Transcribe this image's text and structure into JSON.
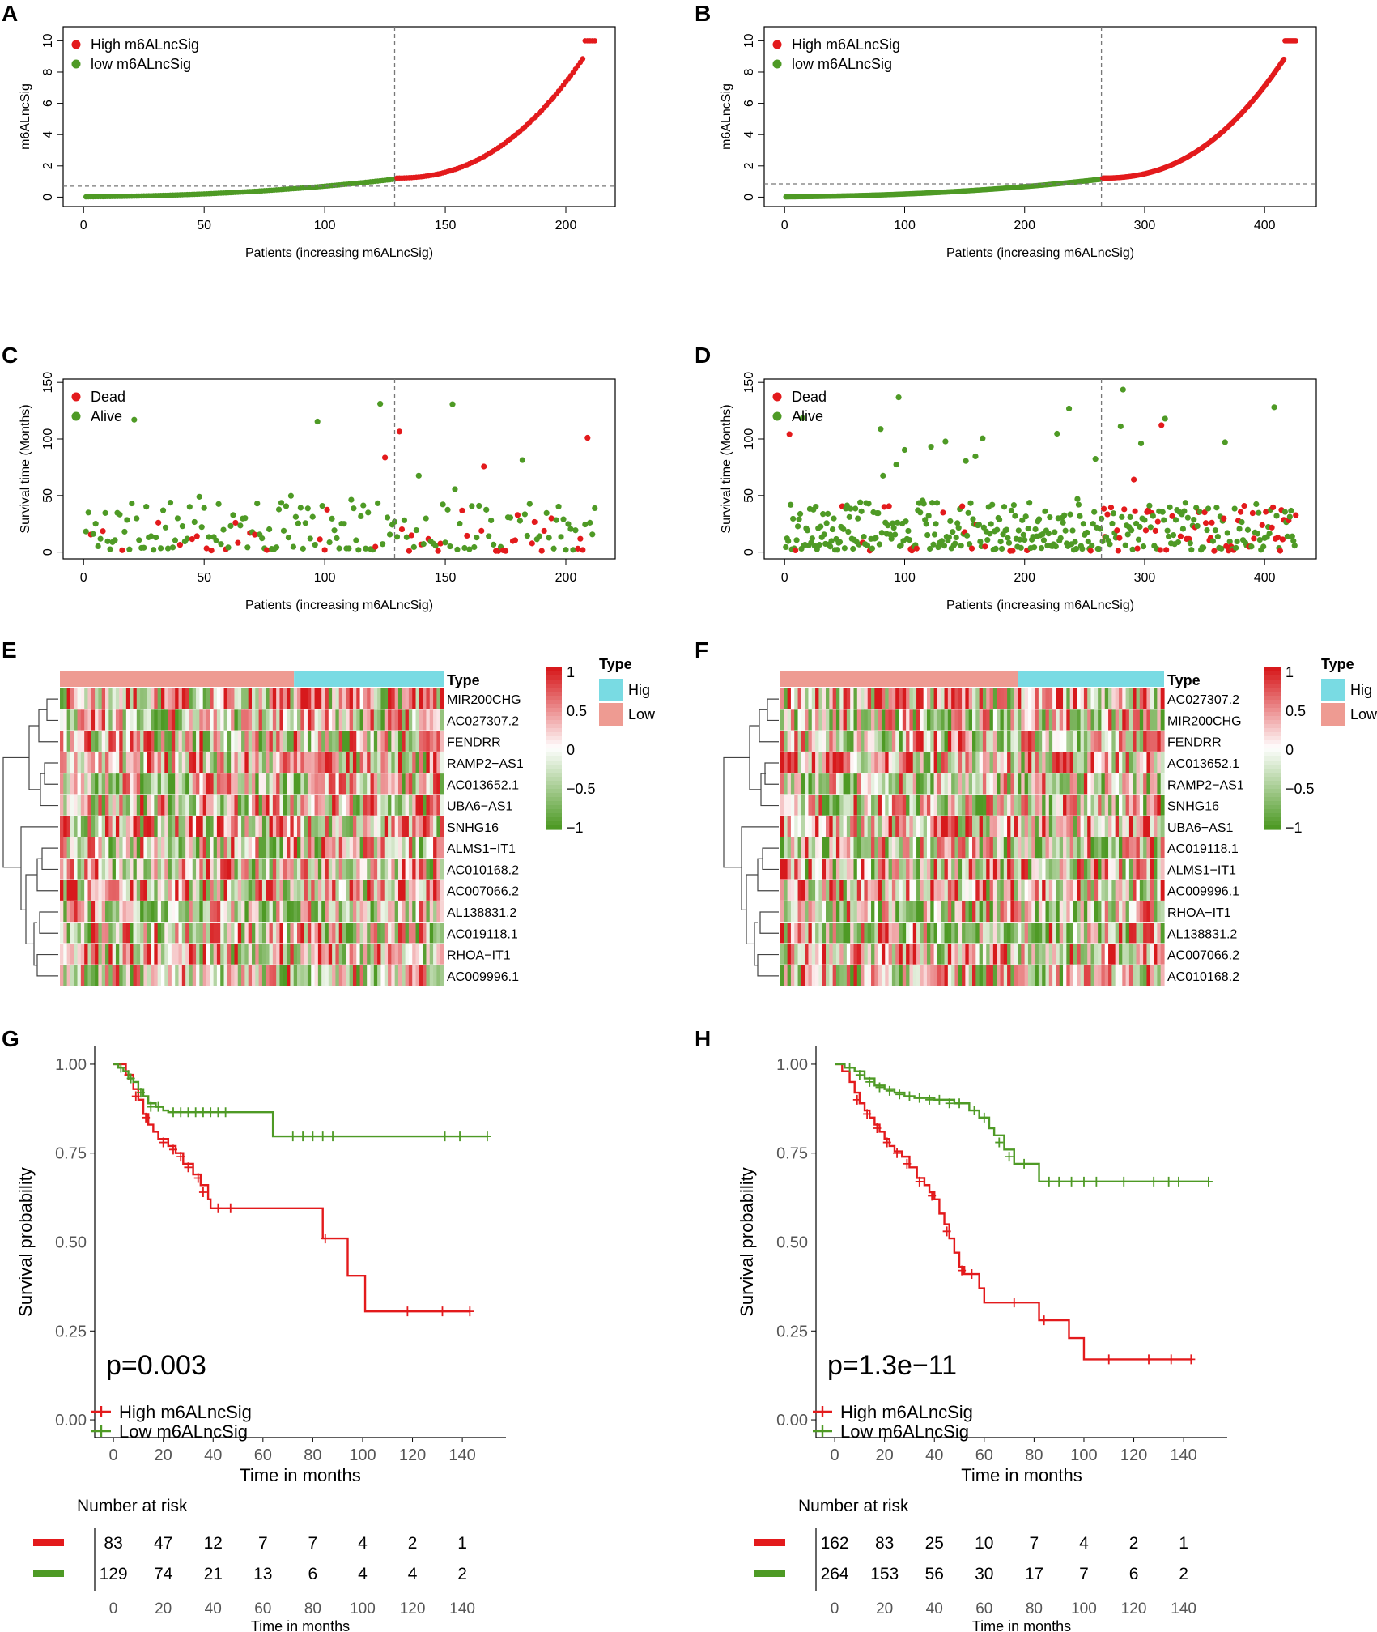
{
  "colors": {
    "high": "#E31A1C",
    "low": "#4E9A25",
    "type_high": "#79DBE3",
    "type_low": "#EE9B92",
    "heat_pos": "#D7191C",
    "heat_neg": "#4E9A25",
    "dash": "#777777"
  },
  "chart_data": [
    {
      "id": "A",
      "type": "scatter",
      "letter": "A",
      "xlabel": "Patients (increasing m6ALncSig)",
      "ylabel": "m6ALncSig",
      "xlim": [
        0,
        212
      ],
      "ylim": [
        0,
        10
      ],
      "xticks": [
        0,
        50,
        100,
        150,
        200
      ],
      "yticks": [
        0,
        2,
        4,
        6,
        8,
        10
      ],
      "n_total": 212,
      "n_low": 129,
      "cutoff_x": 129,
      "cutoff_y": 0.7,
      "legend": [
        "High m6ALncSig",
        "low m6ALncSig"
      ]
    },
    {
      "id": "B",
      "type": "scatter",
      "letter": "B",
      "xlabel": "Patients (increasing m6ALncSig)",
      "ylabel": "m6ALncSig",
      "xlim": [
        0,
        426
      ],
      "ylim": [
        0,
        10
      ],
      "xticks": [
        0,
        100,
        200,
        300,
        400
      ],
      "yticks": [
        0,
        2,
        4,
        6,
        8,
        10
      ],
      "n_total": 426,
      "n_low": 264,
      "cutoff_x": 264,
      "cutoff_y": 0.85,
      "legend": [
        "High m6ALncSig",
        "low m6ALncSig"
      ]
    },
    {
      "id": "C",
      "type": "scatter",
      "letter": "C",
      "xlabel": "Patients (increasing m6ALncSig)",
      "ylabel": "Survival time (Months)",
      "xlim": [
        0,
        212
      ],
      "ylim": [
        0,
        150
      ],
      "xticks": [
        0,
        50,
        100,
        150,
        200
      ],
      "yticks": [
        0,
        50,
        100,
        150
      ],
      "n_total": 212,
      "cutoff_x": 129,
      "legend": [
        "Dead",
        "Alive"
      ]
    },
    {
      "id": "D",
      "type": "scatter",
      "letter": "D",
      "xlabel": "Patients (increasing m6ALncSig)",
      "ylabel": "Survival time (Months)",
      "xlim": [
        0,
        426
      ],
      "ylim": [
        0,
        150
      ],
      "xticks": [
        0,
        100,
        200,
        300,
        400
      ],
      "yticks": [
        0,
        50,
        100,
        150
      ],
      "n_total": 426,
      "cutoff_x": 264,
      "legend": [
        "Dead",
        "Alive"
      ]
    },
    {
      "id": "E",
      "type": "heatmap",
      "letter": "E",
      "genes": [
        "MIR200CHG",
        "AC027307.2",
        "FENDRR",
        "RAMP2−AS1",
        "AC013652.1",
        "UBA6−AS1",
        "SNHG16",
        "ALMS1−IT1",
        "AC010168.2",
        "AC007066.2",
        "AL138831.2",
        "AC019118.1",
        "RHOA−IT1",
        "AC009996.1"
      ],
      "type_title": "Type",
      "legend_title": "Type",
      "legend_items": [
        "Hig",
        "Low"
      ],
      "colorbar_ticks": [
        "1",
        "0.5",
        "0",
        "−0.5",
        "−1"
      ],
      "n_samples": 212,
      "split_fraction": 0.61
    },
    {
      "id": "F",
      "type": "heatmap",
      "letter": "F",
      "genes": [
        "AC027307.2",
        "MIR200CHG",
        "FENDRR",
        "AC013652.1",
        "RAMP2−AS1",
        "SNHG16",
        "UBA6−AS1",
        "AC019118.1",
        "ALMS1−IT1",
        "AC009996.1",
        "RHOA−IT1",
        "AL138831.2",
        "AC007066.2",
        "AC010168.2"
      ],
      "type_title": "Type",
      "legend_title": "Type",
      "legend_items": [
        "Hig",
        "Low"
      ],
      "colorbar_ticks": [
        "1",
        "0.5",
        "0",
        "−0.5",
        "−1"
      ],
      "n_samples": 426,
      "split_fraction": 0.62
    },
    {
      "id": "G",
      "type": "line",
      "letter": "G",
      "xlabel": "Time in months",
      "ylabel": "Survival probability",
      "xlim": [
        0,
        150
      ],
      "ylim": [
        0,
        1
      ],
      "xticks": [
        0,
        20,
        40,
        60,
        80,
        100,
        120,
        140
      ],
      "yticks": [
        "0.00",
        "0.25",
        "0.50",
        "0.75",
        "1.00"
      ],
      "pvalue": "p=0.003",
      "series": [
        {
          "name": "High m6ALncSig",
          "steps": [
            [
              0,
              1.0
            ],
            [
              5,
              0.97
            ],
            [
              8,
              0.93
            ],
            [
              10,
              0.9
            ],
            [
              12,
              0.86
            ],
            [
              14,
              0.83
            ],
            [
              16,
              0.81
            ],
            [
              18,
              0.79
            ],
            [
              22,
              0.77
            ],
            [
              25,
              0.75
            ],
            [
              28,
              0.72
            ],
            [
              32,
              0.69
            ],
            [
              35,
              0.66
            ],
            [
              38,
              0.62
            ],
            [
              39,
              0.595
            ],
            [
              84,
              0.51
            ],
            [
              94,
              0.405
            ],
            [
              101,
              0.305
            ],
            [
              143,
              0.305
            ]
          ],
          "censors": [
            [
              6,
              0.97
            ],
            [
              9,
              0.91
            ],
            [
              13,
              0.85
            ],
            [
              20,
              0.78
            ],
            [
              24,
              0.76
            ],
            [
              27,
              0.74
            ],
            [
              30,
              0.71
            ],
            [
              34,
              0.68
            ],
            [
              36,
              0.64
            ],
            [
              42,
              0.595
            ],
            [
              47,
              0.595
            ],
            [
              85,
              0.51
            ],
            [
              118,
              0.305
            ],
            [
              132,
              0.305
            ],
            [
              143,
              0.305
            ]
          ]
        },
        {
          "name": "Low m6ALncSig",
          "steps": [
            [
              0,
              1.0
            ],
            [
              2,
              0.99
            ],
            [
              4,
              0.98
            ],
            [
              6,
              0.96
            ],
            [
              8,
              0.95
            ],
            [
              10,
              0.93
            ],
            [
              12,
              0.91
            ],
            [
              14,
              0.89
            ],
            [
              17,
              0.88
            ],
            [
              20,
              0.87
            ],
            [
              22,
              0.865
            ],
            [
              64,
              0.797
            ],
            [
              150,
              0.797
            ]
          ],
          "censors": [
            [
              3,
              0.99
            ],
            [
              7,
              0.96
            ],
            [
              11,
              0.92
            ],
            [
              15,
              0.88
            ],
            [
              18,
              0.88
            ],
            [
              24,
              0.865
            ],
            [
              27,
              0.865
            ],
            [
              30,
              0.865
            ],
            [
              33,
              0.865
            ],
            [
              36,
              0.865
            ],
            [
              39,
              0.865
            ],
            [
              42,
              0.865
            ],
            [
              45,
              0.865
            ],
            [
              72,
              0.797
            ],
            [
              76,
              0.797
            ],
            [
              80,
              0.797
            ],
            [
              84,
              0.797
            ],
            [
              88,
              0.797
            ],
            [
              133,
              0.797
            ],
            [
              139,
              0.797
            ],
            [
              150,
              0.797
            ]
          ]
        }
      ],
      "legend": [
        "High m6ALncSig",
        "Low m6ALncSig"
      ],
      "risk_title": "Number at risk",
      "risk_counts": [
        [
          83,
          47,
          12,
          7,
          7,
          4,
          2,
          1
        ],
        [
          129,
          74,
          21,
          13,
          6,
          4,
          4,
          2
        ]
      ],
      "risk_xlabel": "Time in months"
    },
    {
      "id": "H",
      "type": "line",
      "letter": "H",
      "xlabel": "Time in months",
      "ylabel": "Survival probability",
      "xlim": [
        0,
        150
      ],
      "ylim": [
        0,
        1
      ],
      "xticks": [
        0,
        20,
        40,
        60,
        80,
        100,
        120,
        140
      ],
      "yticks": [
        "0.00",
        "0.25",
        "0.50",
        "0.75",
        "1.00"
      ],
      "pvalue": "p=1.3e−11",
      "series": [
        {
          "name": "High m6ALncSig",
          "steps": [
            [
              0,
              1.0
            ],
            [
              3,
              0.98
            ],
            [
              6,
              0.95
            ],
            [
              8,
              0.92
            ],
            [
              10,
              0.89
            ],
            [
              12,
              0.87
            ],
            [
              14,
              0.85
            ],
            [
              16,
              0.83
            ],
            [
              18,
              0.81
            ],
            [
              20,
              0.79
            ],
            [
              22,
              0.77
            ],
            [
              24,
              0.755
            ],
            [
              27,
              0.74
            ],
            [
              30,
              0.71
            ],
            [
              33,
              0.68
            ],
            [
              36,
              0.66
            ],
            [
              38,
              0.64
            ],
            [
              40,
              0.62
            ],
            [
              42,
              0.58
            ],
            [
              44,
              0.55
            ],
            [
              46,
              0.51
            ],
            [
              48,
              0.47
            ],
            [
              50,
              0.43
            ],
            [
              52,
              0.41
            ],
            [
              58,
              0.37
            ],
            [
              60,
              0.33
            ],
            [
              82,
              0.28
            ],
            [
              94,
              0.23
            ],
            [
              100,
              0.17
            ],
            [
              143,
              0.17
            ]
          ],
          "censors": [
            [
              9,
              0.9
            ],
            [
              13,
              0.86
            ],
            [
              17,
              0.82
            ],
            [
              21,
              0.78
            ],
            [
              25,
              0.75
            ],
            [
              29,
              0.72
            ],
            [
              34,
              0.67
            ],
            [
              39,
              0.63
            ],
            [
              45,
              0.53
            ],
            [
              51,
              0.42
            ],
            [
              55,
              0.41
            ],
            [
              72,
              0.33
            ],
            [
              84,
              0.28
            ],
            [
              110,
              0.17
            ],
            [
              126,
              0.17
            ],
            [
              135,
              0.17
            ],
            [
              143,
              0.17
            ]
          ]
        },
        {
          "name": "Low m6ALncSig",
          "steps": [
            [
              0,
              1.0
            ],
            [
              4,
              0.99
            ],
            [
              8,
              0.98
            ],
            [
              12,
              0.96
            ],
            [
              16,
              0.94
            ],
            [
              20,
              0.93
            ],
            [
              24,
              0.92
            ],
            [
              28,
              0.91
            ],
            [
              32,
              0.905
            ],
            [
              40,
              0.9
            ],
            [
              48,
              0.89
            ],
            [
              54,
              0.87
            ],
            [
              58,
              0.85
            ],
            [
              62,
              0.82
            ],
            [
              64,
              0.8
            ],
            [
              68,
              0.76
            ],
            [
              72,
              0.72
            ],
            [
              82,
              0.67
            ],
            [
              150,
              0.67
            ]
          ],
          "censors": [
            [
              6,
              0.99
            ],
            [
              10,
              0.97
            ],
            [
              14,
              0.95
            ],
            [
              18,
              0.935
            ],
            [
              22,
              0.925
            ],
            [
              26,
              0.915
            ],
            [
              30,
              0.91
            ],
            [
              34,
              0.905
            ],
            [
              38,
              0.9
            ],
            [
              42,
              0.9
            ],
            [
              46,
              0.89
            ],
            [
              50,
              0.89
            ],
            [
              56,
              0.87
            ],
            [
              60,
              0.85
            ],
            [
              66,
              0.78
            ],
            [
              70,
              0.74
            ],
            [
              76,
              0.72
            ],
            [
              86,
              0.67
            ],
            [
              90,
              0.67
            ],
            [
              95,
              0.67
            ],
            [
              100,
              0.67
            ],
            [
              105,
              0.67
            ],
            [
              116,
              0.67
            ],
            [
              128,
              0.67
            ],
            [
              134,
              0.67
            ],
            [
              138,
              0.67
            ],
            [
              150,
              0.67
            ]
          ]
        }
      ],
      "legend": [
        "High m6ALncSig",
        "Low m6ALncSig"
      ],
      "risk_title": "Number at risk",
      "risk_counts": [
        [
          162,
          83,
          25,
          10,
          7,
          4,
          2,
          1
        ],
        [
          264,
          153,
          56,
          30,
          17,
          7,
          6,
          2
        ]
      ],
      "risk_xlabel": "Time in months"
    }
  ]
}
